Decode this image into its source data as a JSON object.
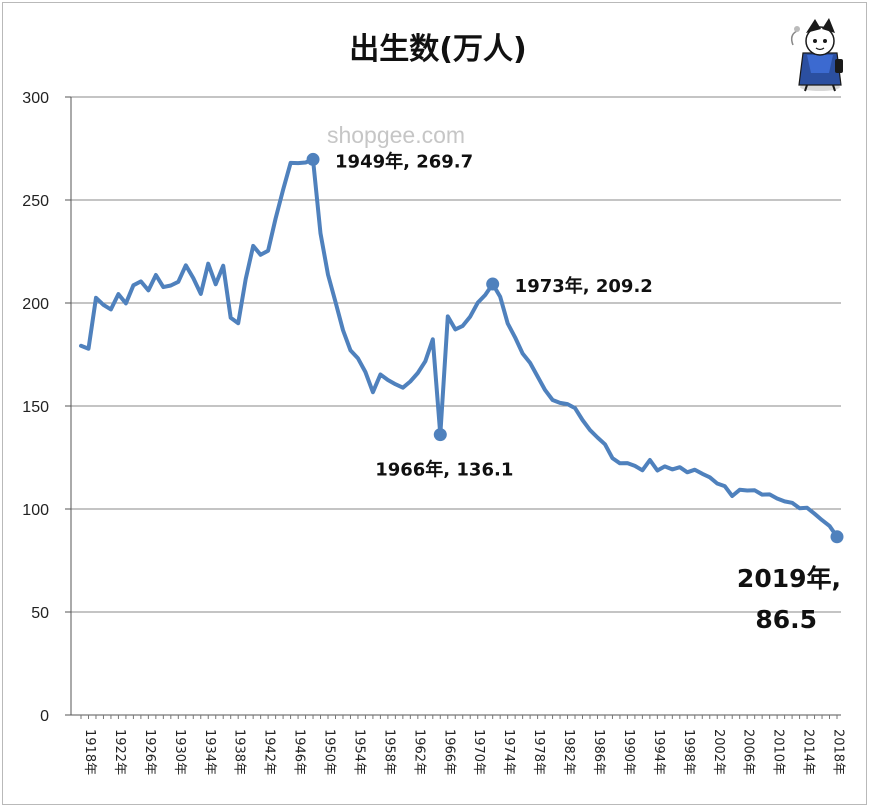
{
  "watermark": "shopgee.com",
  "chart_data": {
    "type": "line",
    "title": "出生数(万人)",
    "xlabel": "",
    "ylabel": "",
    "ylim": [
      0,
      300
    ],
    "yticks": [
      0,
      50,
      100,
      150,
      200,
      250,
      300
    ],
    "grid": true,
    "legend": "none",
    "color": "#4f81bd",
    "xticks": [
      "1918年",
      "1922年",
      "1926年",
      "1930年",
      "1934年",
      "1938年",
      "1942年",
      "1946年",
      "1950年",
      "1954年",
      "1958年",
      "1962年",
      "1966年",
      "1970年",
      "1974年",
      "1978年",
      "1982年",
      "1986年",
      "1990年",
      "1994年",
      "1998年",
      "2002年",
      "2006年",
      "2010年",
      "2014年",
      "2018年"
    ],
    "x": [
      1918,
      1919,
      1920,
      1921,
      1922,
      1923,
      1924,
      1925,
      1926,
      1927,
      1928,
      1929,
      1930,
      1931,
      1932,
      1933,
      1934,
      1935,
      1936,
      1937,
      1938,
      1939,
      1940,
      1941,
      1942,
      1943,
      1944,
      1945,
      1946,
      1947,
      1948,
      1949,
      1950,
      1951,
      1952,
      1953,
      1954,
      1955,
      1956,
      1957,
      1958,
      1959,
      1960,
      1961,
      1962,
      1963,
      1964,
      1965,
      1966,
      1967,
      1968,
      1969,
      1970,
      1971,
      1972,
      1973,
      1974,
      1975,
      1976,
      1977,
      1978,
      1979,
      1980,
      1981,
      1982,
      1983,
      1984,
      1985,
      1986,
      1987,
      1988,
      1989,
      1990,
      1991,
      1992,
      1993,
      1994,
      1995,
      1996,
      1997,
      1998,
      1999,
      2000,
      2001,
      2002,
      2003,
      2004,
      2005,
      2006,
      2007,
      2008,
      2009,
      2010,
      2011,
      2012,
      2013,
      2014,
      2015,
      2016,
      2017,
      2018,
      2019
    ],
    "series": [
      {
        "values": [
          179.2,
          177.8,
          202.5,
          199.1,
          196.9,
          204.3,
          199.8,
          208.6,
          210.5,
          206.1,
          213.6,
          207.7,
          208.5,
          210.3,
          218.3,
          212.1,
          204.4,
          219.1,
          209.1,
          218.1,
          192.8,
          190.2,
          211.6,
          227.7,
          223.4,
          225.4,
          241.0,
          255.0,
          268.0,
          267.9,
          268.2,
          269.7,
          233.8,
          213.8,
          200.5,
          186.8,
          177.0,
          173.1,
          166.5,
          156.7,
          165.3,
          162.6,
          160.6,
          158.9,
          161.9,
          166.0,
          171.7,
          182.4,
          136.1,
          193.5,
          187.2,
          188.9,
          193.4,
          200.1,
          203.9,
          209.2,
          203.0,
          190.1,
          183.3,
          175.5,
          170.9,
          164.3,
          157.7,
          152.9,
          151.5,
          150.9,
          149.0,
          143.2,
          138.3,
          134.7,
          131.4,
          124.7,
          122.2,
          122.3,
          120.9,
          118.8,
          123.8,
          118.7,
          120.7,
          119.2,
          120.3,
          117.8,
          119.1,
          117.1,
          115.4,
          112.4,
          111.1,
          106.3,
          109.3,
          109.0,
          109.1,
          107.0,
          107.1,
          105.1,
          103.7,
          103.0,
          100.4,
          100.6,
          97.7,
          94.6,
          91.8,
          86.5
        ]
      }
    ],
    "annotations": [
      {
        "x": 1949,
        "y": 269.7,
        "label": "1949年, 269.7"
      },
      {
        "x": 1966,
        "y": 136.1,
        "label": "1966年, 136.1"
      },
      {
        "x": 1973,
        "y": 209.2,
        "label": "1973年, 209.2"
      },
      {
        "x": 2019,
        "y": 86.5,
        "label": "2019年,",
        "label2": "86.5"
      }
    ]
  }
}
